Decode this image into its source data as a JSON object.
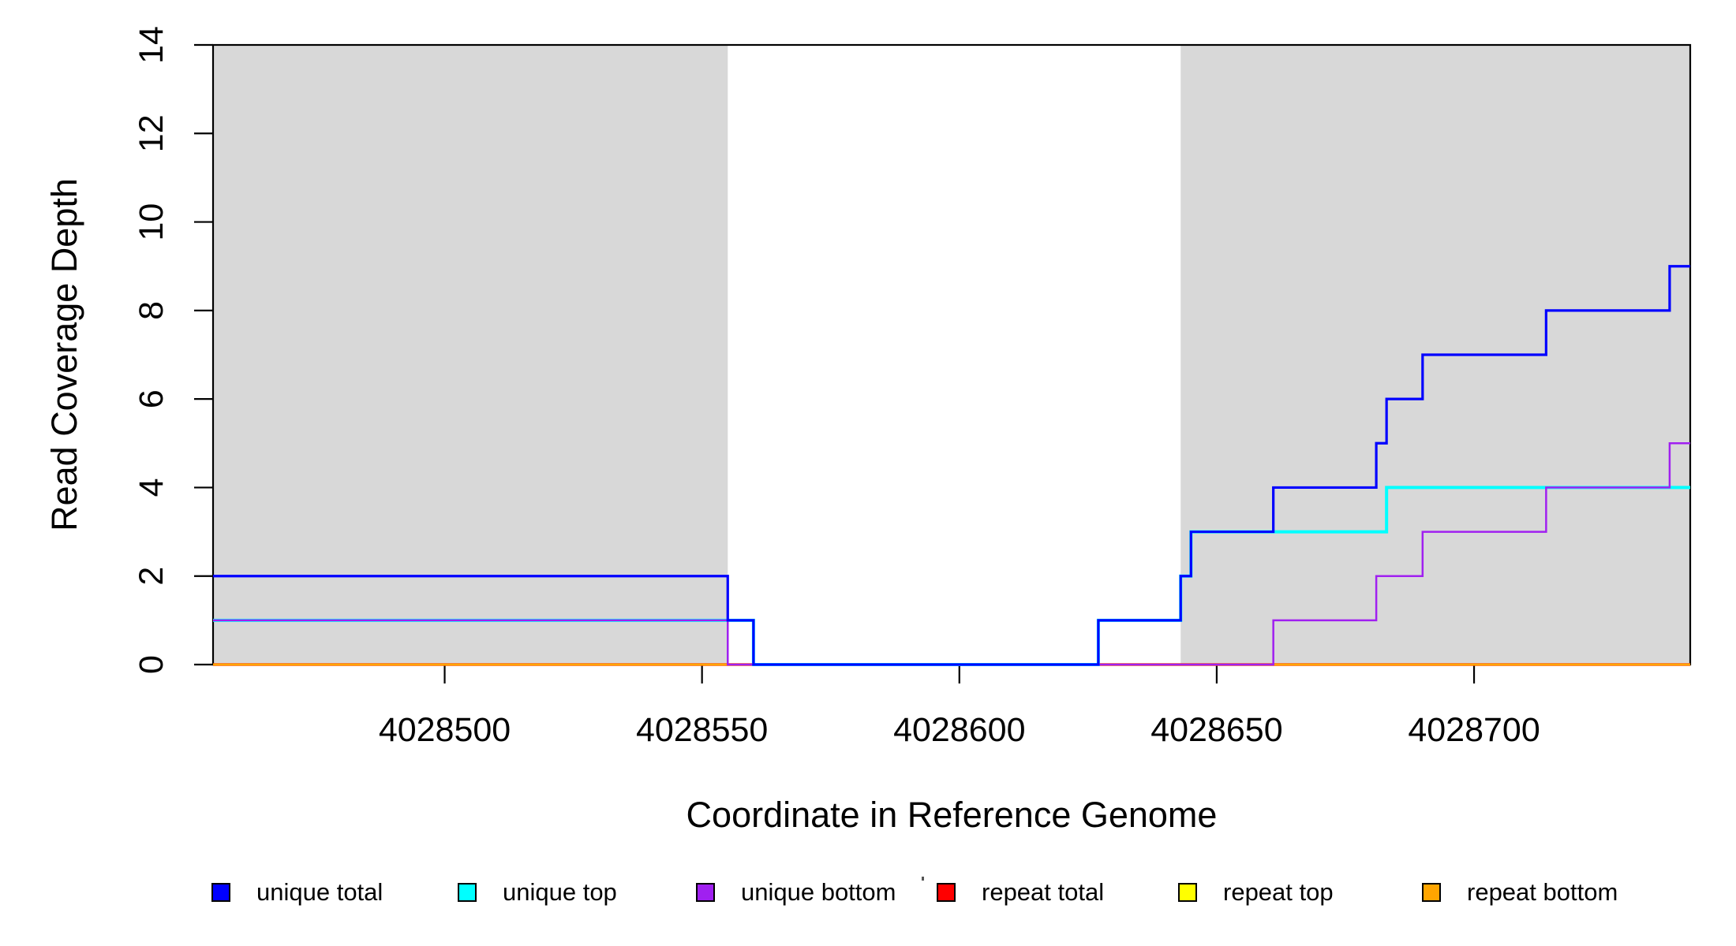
{
  "chart_data": {
    "type": "line",
    "subtype": "step",
    "title": "",
    "xlabel": "Coordinate in Reference Genome",
    "ylabel": "Read Coverage Depth",
    "x_range": [
      4028455,
      4028742
    ],
    "y_range": [
      0,
      14
    ],
    "grid": false,
    "background_color": "#FFFFFF",
    "axis_color": "#000000",
    "shade_color": "#D8D8D8",
    "shaded_regions": [
      {
        "x1": 4028455,
        "x2": 4028555
      },
      {
        "x1": 4028643,
        "x2": 4028742
      }
    ],
    "x_ticks": [
      {
        "value": 4028500,
        "label": "4028500"
      },
      {
        "value": 4028550,
        "label": "4028550"
      },
      {
        "value": 4028600,
        "label": "4028600"
      },
      {
        "value": 4028650,
        "label": "4028650"
      },
      {
        "value": 4028700,
        "label": "4028700"
      }
    ],
    "y_ticks": [
      {
        "value": 0,
        "label": "0"
      },
      {
        "value": 2,
        "label": "2"
      },
      {
        "value": 4,
        "label": "4"
      },
      {
        "value": 6,
        "label": "6"
      },
      {
        "value": 8,
        "label": "8"
      },
      {
        "value": 10,
        "label": "10"
      },
      {
        "value": 12,
        "label": "12"
      },
      {
        "value": 14,
        "label": "14"
      }
    ],
    "series": [
      {
        "name": "unique total",
        "color": "#0000FF",
        "width": 3.2,
        "z": 6,
        "steps": [
          [
            4028455,
            2
          ],
          [
            4028555,
            1
          ],
          [
            4028560,
            0
          ],
          [
            4028627,
            1
          ],
          [
            4028643,
            2
          ],
          [
            4028645,
            3
          ],
          [
            4028661,
            4
          ],
          [
            4028681,
            5
          ],
          [
            4028683,
            6
          ],
          [
            4028690,
            7
          ],
          [
            4028714,
            8
          ],
          [
            4028738,
            9
          ]
        ]
      },
      {
        "name": "unique top",
        "color": "#00FFFF",
        "width": 4.0,
        "z": 4,
        "steps": [
          [
            4028455,
            1
          ],
          [
            4028560,
            0
          ],
          [
            4028627,
            1
          ],
          [
            4028643,
            2
          ],
          [
            4028645,
            3
          ],
          [
            4028683,
            4
          ]
        ]
      },
      {
        "name": "unique bottom",
        "color": "#A020F0",
        "width": 2.5,
        "z": 5,
        "steps": [
          [
            4028455,
            1
          ],
          [
            4028555,
            0
          ],
          [
            4028661,
            1
          ],
          [
            4028681,
            2
          ],
          [
            4028690,
            3
          ],
          [
            4028714,
            4
          ],
          [
            4028738,
            5
          ]
        ]
      },
      {
        "name": "repeat total",
        "color": "#FF0000",
        "width": 3.5,
        "z": 1,
        "steps": [
          [
            4028455,
            0
          ]
        ]
      },
      {
        "name": "repeat top",
        "color": "#FFFF00",
        "width": 2.5,
        "z": 2,
        "steps": [
          [
            4028455,
            0
          ]
        ]
      },
      {
        "name": "repeat bottom",
        "color": "#FFA500",
        "width": 2.5,
        "z": 3,
        "steps": [
          [
            4028455,
            0
          ]
        ]
      }
    ],
    "legend": {
      "position": "bottom",
      "items": [
        {
          "label": "unique total",
          "color": "#0000FF"
        },
        {
          "label": "unique top",
          "color": "#00FFFF"
        },
        {
          "label": "unique bottom",
          "color": "#A020F0"
        },
        {
          "label": "repeat total",
          "color": "#FF0000"
        },
        {
          "label": "repeat top",
          "color": "#FFFF00"
        },
        {
          "label": "repeat bottom",
          "color": "#FFA500"
        }
      ]
    }
  }
}
